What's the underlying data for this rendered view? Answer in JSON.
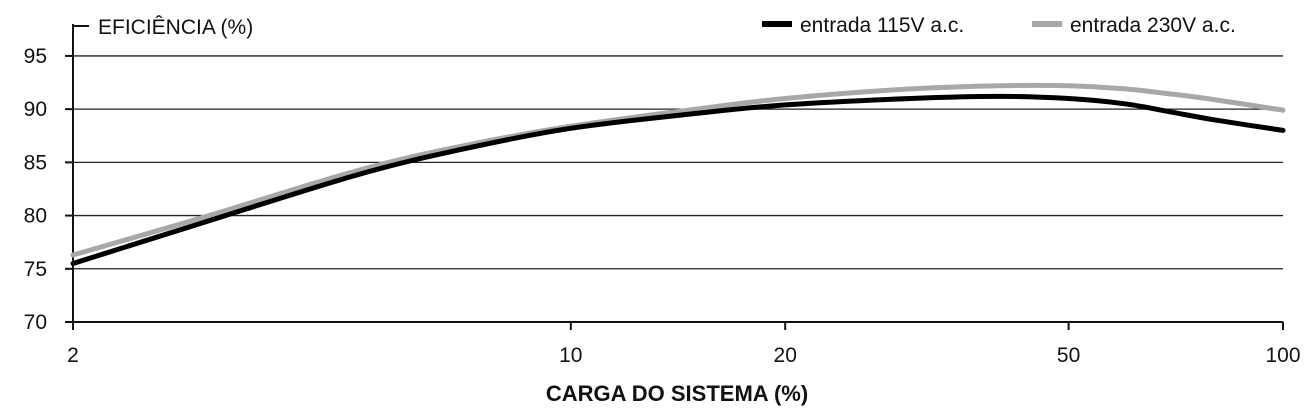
{
  "chart_data": {
    "type": "line",
    "title": "EFICIÊNCIA (%)",
    "xlabel": "CARGA DO SISTEMA (%)",
    "ylabel": "",
    "x_scale": "log",
    "xlim": [
      2,
      100
    ],
    "ylim": [
      70,
      98
    ],
    "x_ticks": [
      2,
      10,
      20,
      50,
      100
    ],
    "y_ticks": [
      70,
      75,
      80,
      85,
      90,
      95
    ],
    "grid": "horizontal",
    "legend_position": "top-right",
    "series": [
      {
        "name": "entrada 115V a.c.",
        "color": "#000000",
        "x": [
          2,
          3,
          5,
          7,
          10,
          15,
          20,
          30,
          40,
          50,
          60,
          70,
          80,
          100
        ],
        "y": [
          75.5,
          79.2,
          83.8,
          86.2,
          88.2,
          89.6,
          90.4,
          91.0,
          91.2,
          91.0,
          90.5,
          89.7,
          89.0,
          88.0
        ]
      },
      {
        "name": "entrada 230V a.c.",
        "color": "#a8a8a8",
        "x": [
          2,
          3,
          5,
          7,
          10,
          15,
          20,
          30,
          40,
          50,
          60,
          70,
          80,
          100
        ],
        "y": [
          76.3,
          79.7,
          84.2,
          86.5,
          88.4,
          90.0,
          91.0,
          91.9,
          92.2,
          92.2,
          91.9,
          91.4,
          90.9,
          89.9
        ]
      }
    ]
  }
}
